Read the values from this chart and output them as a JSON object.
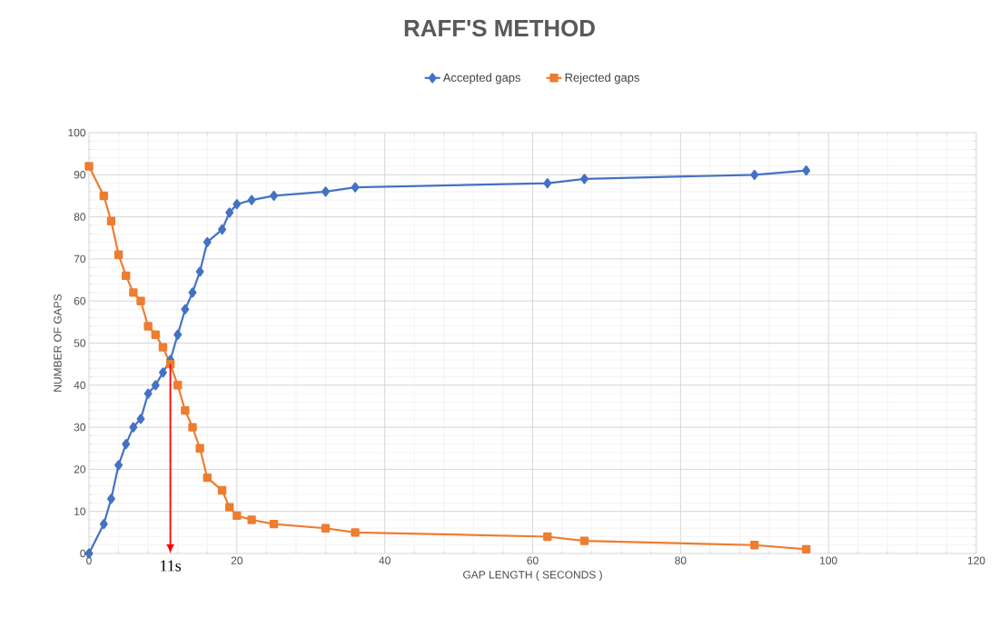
{
  "chart_data": {
    "type": "line",
    "title": "RAFF'S METHOD",
    "xlabel": "GAP LENGTH ( SECONDS )",
    "ylabel": "NUMBER OF GAPS",
    "xlim": [
      0,
      120
    ],
    "xticks": [
      0,
      20,
      40,
      60,
      80,
      100,
      120
    ],
    "ylim": [
      0,
      100
    ],
    "yticks": [
      0,
      10,
      20,
      30,
      40,
      50,
      60,
      70,
      80,
      90,
      100
    ],
    "grid": true,
    "legend": "top",
    "series": [
      {
        "name": "Accepted gaps",
        "color": "#4472c4",
        "marker": "diamond",
        "x": [
          0,
          2,
          3,
          4,
          5,
          6,
          7,
          8,
          9,
          10,
          11,
          12,
          13,
          14,
          15,
          16,
          18,
          19,
          20,
          22,
          25,
          32,
          36,
          62,
          67,
          90,
          97
        ],
        "values": [
          0,
          7,
          13,
          21,
          26,
          30,
          32,
          38,
          40,
          43,
          46,
          52,
          58,
          62,
          67,
          74,
          77,
          81,
          83,
          84,
          85,
          86,
          87,
          88,
          89,
          90,
          91
        ]
      },
      {
        "name": "Rejected gaps",
        "color": "#ed7d31",
        "marker": "square",
        "x": [
          0,
          2,
          3,
          4,
          5,
          6,
          7,
          8,
          9,
          10,
          11,
          12,
          13,
          14,
          15,
          16,
          18,
          19,
          20,
          22,
          25,
          32,
          36,
          62,
          67,
          90,
          97
        ],
        "values": [
          92,
          85,
          79,
          71,
          66,
          62,
          60,
          54,
          52,
          49,
          45,
          40,
          34,
          30,
          25,
          18,
          15,
          11,
          9,
          8,
          7,
          6,
          5,
          4,
          3,
          2,
          1
        ]
      }
    ],
    "annotations": [
      {
        "text": "11s",
        "x": 11,
        "y": 45
      }
    ]
  }
}
